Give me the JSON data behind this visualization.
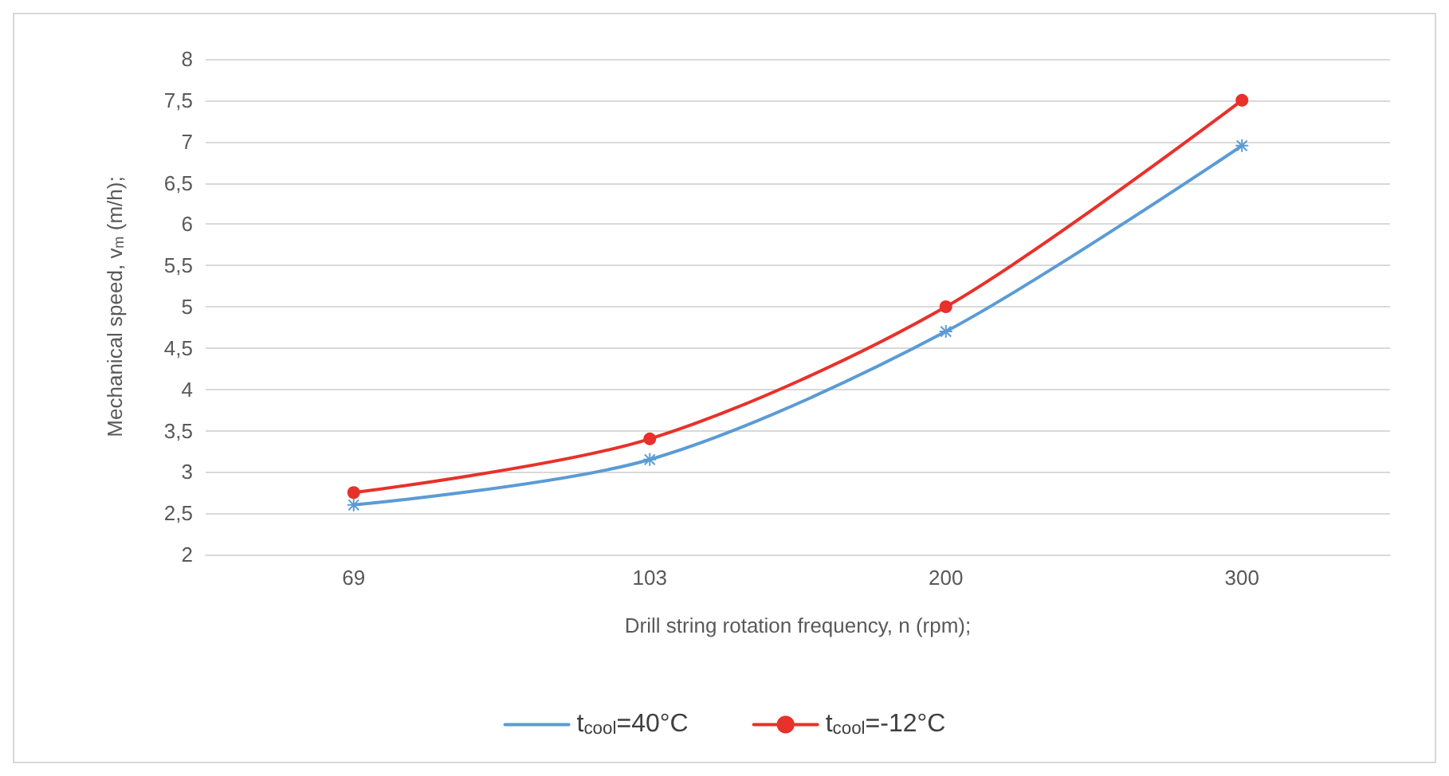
{
  "chart_data": {
    "type": "line",
    "xlabel": "Drill string rotation frequency, n (rpm);",
    "ylabel": "Mechanical speed, v$_{m}$ (m/h);",
    "categories": [
      "69",
      "103",
      "200",
      "300"
    ],
    "series": [
      {
        "name": "t$_{cool}$=40°C",
        "color": "#5b9bd5",
        "marker": "cross",
        "values": [
          2.6,
          3.15,
          4.7,
          6.95
        ]
      },
      {
        "name": "t$_{cool}$=-12°C",
        "color": "#e8312a",
        "marker": "circle",
        "values": [
          2.75,
          3.4,
          5.0,
          7.5
        ]
      }
    ],
    "ylim": [
      2,
      8
    ],
    "yticks": [
      2,
      {
        "value": 2.5,
        "label": "2,5"
      },
      3,
      {
        "value": 3.5,
        "label": "3,5"
      },
      4,
      {
        "value": 4.5,
        "label": "4,5"
      },
      5,
      {
        "value": 5.5,
        "label": "5,5"
      },
      6,
      {
        "value": 6.5,
        "label": "6,5"
      },
      7,
      {
        "value": 7.5,
        "label": "7,5"
      },
      8
    ],
    "grid": "y",
    "legend": "bottom",
    "line_style": "solid"
  }
}
